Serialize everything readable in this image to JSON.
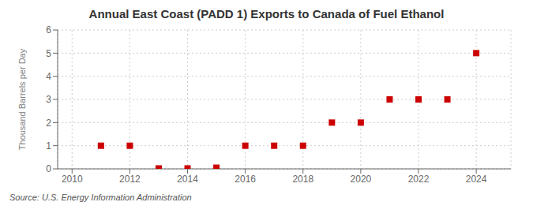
{
  "chart_data": {
    "type": "scatter",
    "title": "Annual East Coast (PADD 1) Exports to Canada of Fuel Ethanol",
    "ylabel": "Thousand Barrels per Day",
    "annotation": "Source: U.S. Energy Information Administration",
    "x": [
      2011,
      2012,
      2013,
      2014,
      2015,
      2016,
      2017,
      2018,
      2019,
      2020,
      2021,
      2022,
      2023,
      2024
    ],
    "values": [
      1,
      1,
      0.02,
      0.02,
      0.05,
      1,
      1,
      1,
      2,
      2,
      3,
      3,
      3,
      5
    ],
    "color": "#cc0000",
    "marker": "square",
    "xlim": [
      2009.5,
      2025.2
    ],
    "xticks": [
      2010,
      2012,
      2014,
      2016,
      2018,
      2020,
      2022,
      2024
    ],
    "ylim": [
      0,
      6
    ],
    "yticks": [
      0,
      1,
      2,
      3,
      4,
      5,
      6
    ],
    "grid": true
  }
}
